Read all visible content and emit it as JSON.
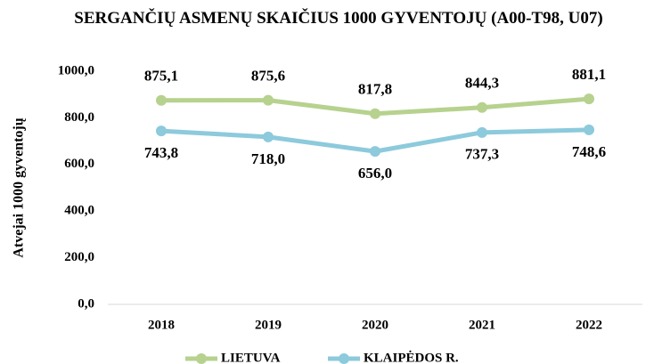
{
  "chart_data": {
    "type": "line",
    "title": "SERGANČIŲ ASMENŲ SKAIČIUS 1000 GYVENTOJŲ (A00-T98, U07)",
    "y_label": "Atvejai 1000 gyventojų",
    "categories": [
      "2018",
      "2019",
      "2020",
      "2021",
      "2022"
    ],
    "series": [
      {
        "name": "LIETUVA",
        "color": "#b6d28e",
        "values": [
          875.1,
          875.6,
          817.8,
          844.3,
          881.1
        ],
        "value_labels": [
          "875,1",
          "875,6",
          "817,8",
          "844,3",
          "881,1"
        ]
      },
      {
        "name": "KLAIPĖDOS R.",
        "color": "#8ccadc",
        "values": [
          743.8,
          718.0,
          656.0,
          737.3,
          748.6
        ],
        "value_labels": [
          "743,8",
          "718,0",
          "656,0",
          "737,3",
          "748,6"
        ]
      }
    ],
    "ylim": [
      0,
      1000
    ],
    "yticks": [
      {
        "value": 0,
        "label": "0,0"
      },
      {
        "value": 200,
        "label": "200,0"
      },
      {
        "value": 400,
        "label": "400,0"
      },
      {
        "value": 600,
        "label": "600,0"
      },
      {
        "value": 800,
        "label": "800,0"
      },
      {
        "value": 1000,
        "label": "1000,0"
      }
    ],
    "grid": false,
    "legend": "bottom"
  }
}
